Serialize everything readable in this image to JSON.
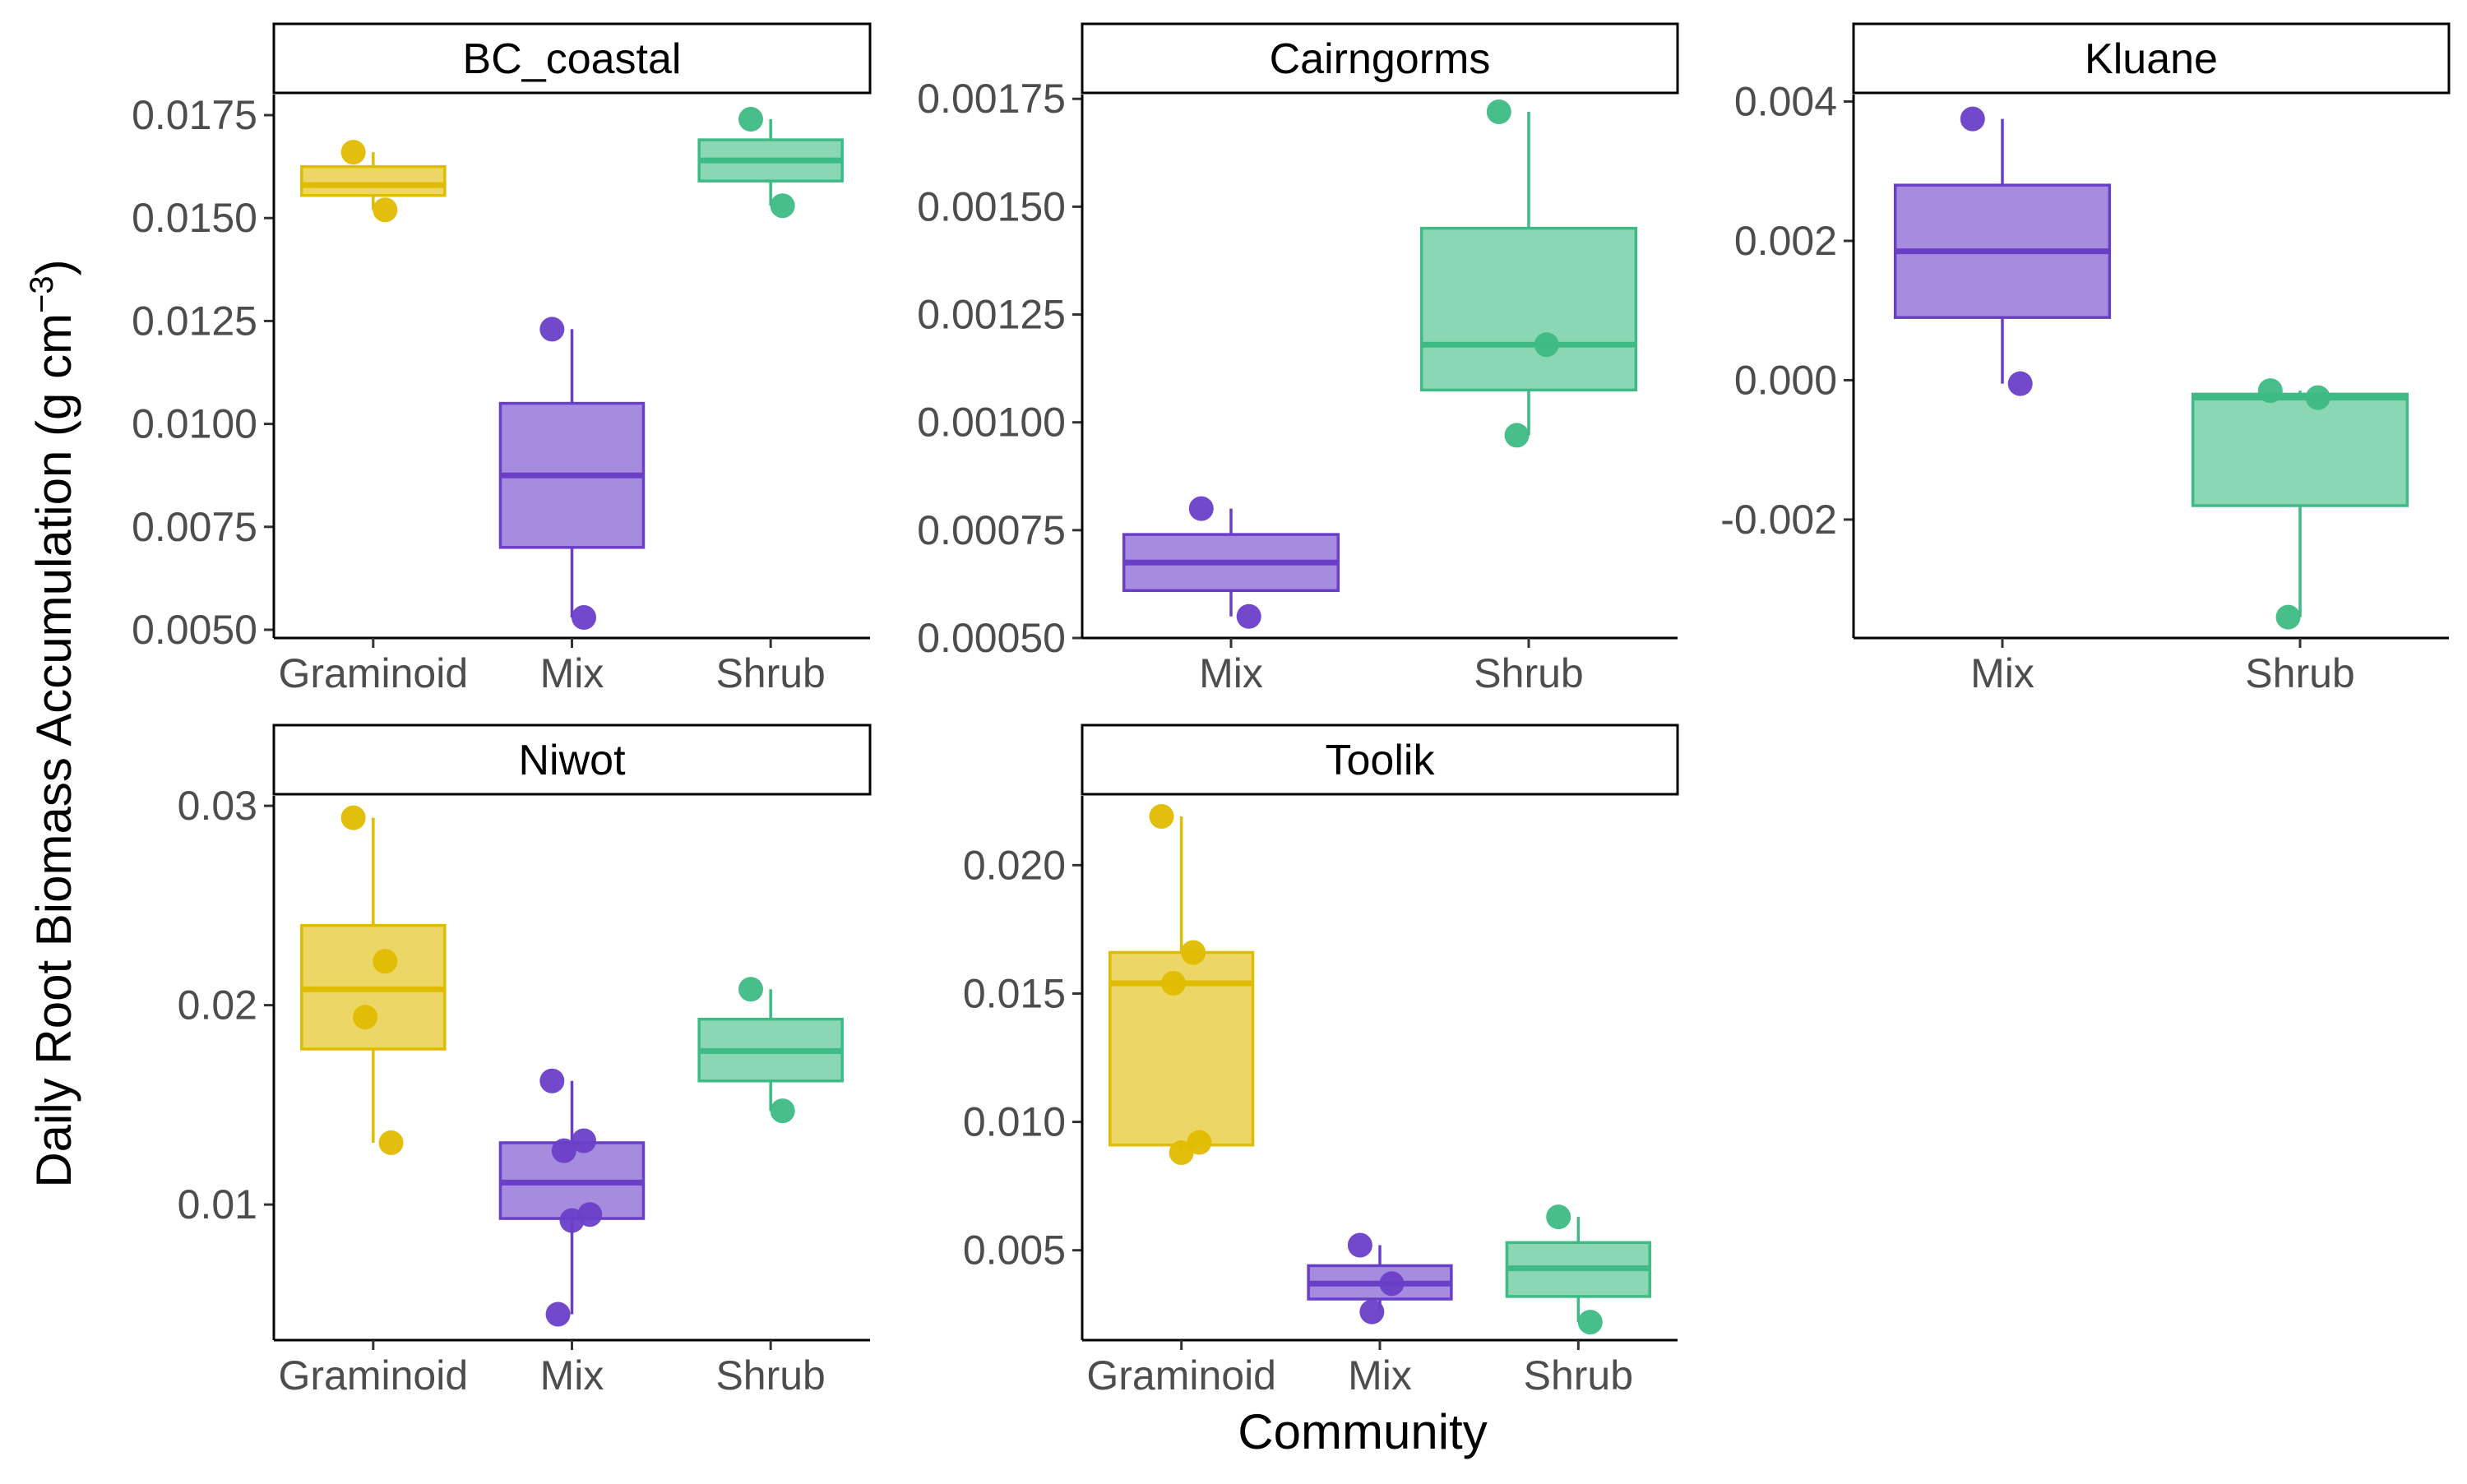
{
  "figure": {
    "xlabel": "Community",
    "ylabel_main": "Daily Root Biomass Accumulation (g cm",
    "ylabel_sup": "−3",
    "ylabel_close": ")"
  },
  "colors": {
    "Graminoid": "#E0BC00",
    "Mix": "#6A3FC8",
    "Shrub": "#3EBB84"
  },
  "chart_data": [
    {
      "type": "box",
      "facet": "BC_coastal",
      "categories": [
        "Graminoid",
        "Mix",
        "Shrub"
      ],
      "ylim": [
        0.0048,
        0.018
      ],
      "yticks": [
        0.005,
        0.0075,
        0.01,
        0.0125,
        0.015,
        0.0175
      ],
      "ytick_labels": [
        "0.0050",
        "0.0075",
        "0.0100",
        "0.0125",
        "0.0150",
        "0.0175"
      ],
      "boxes": [
        {
          "category": "Graminoid",
          "min": 0.0152,
          "q1": 0.01555,
          "median": 0.0158,
          "q3": 0.01625,
          "max": 0.0166,
          "points": [
            0.0166,
            0.0152
          ]
        },
        {
          "category": "Mix",
          "min": 0.0053,
          "q1": 0.007,
          "median": 0.00875,
          "q3": 0.0105,
          "max": 0.0123,
          "points": [
            0.0123,
            0.0053
          ]
        },
        {
          "category": "Shrub",
          "min": 0.0153,
          "q1": 0.0159,
          "median": 0.0164,
          "q3": 0.0169,
          "max": 0.0174,
          "points": [
            0.0174,
            0.0153
          ]
        }
      ]
    },
    {
      "type": "box",
      "facet": "Cairngorms",
      "categories": [
        "Mix",
        "Shrub"
      ],
      "ylim": [
        0.0005,
        0.00176
      ],
      "yticks": [
        0.0005,
        0.00075,
        0.001,
        0.00125,
        0.0015,
        0.00175
      ],
      "ytick_labels": [
        "0.00050",
        "0.00075",
        "0.00100",
        "0.00125",
        "0.00150",
        "0.00175"
      ],
      "boxes": [
        {
          "category": "Mix",
          "min": 0.00055,
          "q1": 0.00061,
          "median": 0.000675,
          "q3": 0.00074,
          "max": 0.0008,
          "points": [
            0.0008,
            0.00055
          ]
        },
        {
          "category": "Shrub",
          "min": 0.00097,
          "q1": 0.001075,
          "median": 0.00118,
          "q3": 0.00145,
          "max": 0.00172,
          "points": [
            0.00172,
            0.00118,
            0.00097
          ]
        }
      ]
    },
    {
      "type": "box",
      "facet": "Kluane",
      "categories": [
        "Mix",
        "Shrub"
      ],
      "ylim": [
        -0.0037,
        0.0041
      ],
      "yticks": [
        -0.002,
        0.0,
        0.002,
        0.004
      ],
      "ytick_labels": [
        "-0.002",
        "0.000",
        "0.002",
        "0.004"
      ],
      "boxes": [
        {
          "category": "Mix",
          "min": -5e-05,
          "q1": 0.0009,
          "median": 0.00185,
          "q3": 0.0028,
          "max": 0.00375,
          "points": [
            0.00375,
            -5e-05
          ]
        },
        {
          "category": "Shrub",
          "min": -0.0034,
          "q1": -0.0018,
          "median": -0.00025,
          "q3": -0.0002,
          "max": -0.00015,
          "points": [
            -0.00015,
            -0.00025,
            -0.0034
          ]
        }
      ]
    },
    {
      "type": "box",
      "facet": "Niwot",
      "categories": [
        "Graminoid",
        "Mix",
        "Shrub"
      ],
      "ylim": [
        0.0032,
        0.0305
      ],
      "yticks": [
        0.01,
        0.02,
        0.03
      ],
      "ytick_labels": [
        "0.01",
        "0.02",
        "0.03"
      ],
      "boxes": [
        {
          "category": "Graminoid",
          "min": 0.0131,
          "q1": 0.0178,
          "median": 0.0208,
          "q3": 0.024,
          "max": 0.0294,
          "points": [
            0.0294,
            0.0222,
            0.0194,
            0.0131
          ]
        },
        {
          "category": "Mix",
          "min": 0.0045,
          "q1": 0.0093,
          "median": 0.0111,
          "q3": 0.0131,
          "max": 0.0162,
          "points": [
            0.0162,
            0.0132,
            0.0127,
            0.0095,
            0.0092,
            0.0045
          ]
        },
        {
          "category": "Shrub",
          "min": 0.0147,
          "q1": 0.0162,
          "median": 0.0177,
          "q3": 0.0193,
          "max": 0.0208,
          "points": [
            0.0208,
            0.0147
          ]
        }
      ]
    },
    {
      "type": "box",
      "facet": "Toolik",
      "categories": [
        "Graminoid",
        "Mix",
        "Shrub"
      ],
      "ylim": [
        0.0015,
        0.0227
      ],
      "yticks": [
        0.005,
        0.01,
        0.015,
        0.02
      ],
      "ytick_labels": [
        "0.005",
        "0.010",
        "0.015",
        "0.020"
      ],
      "boxes": [
        {
          "category": "Graminoid",
          "min": 0.0088,
          "q1": 0.0091,
          "median": 0.0154,
          "q3": 0.0166,
          "max": 0.0219,
          "points": [
            0.0219,
            0.0166,
            0.0154,
            0.0092,
            0.0088
          ]
        },
        {
          "category": "Mix",
          "min": 0.0026,
          "q1": 0.0031,
          "median": 0.0037,
          "q3": 0.0044,
          "max": 0.0052,
          "points": [
            0.0052,
            0.0037,
            0.0026
          ]
        },
        {
          "category": "Shrub",
          "min": 0.0022,
          "q1": 0.0032,
          "median": 0.0043,
          "q3": 0.0053,
          "max": 0.0063,
          "points": [
            0.0063,
            0.0022
          ]
        }
      ]
    }
  ]
}
